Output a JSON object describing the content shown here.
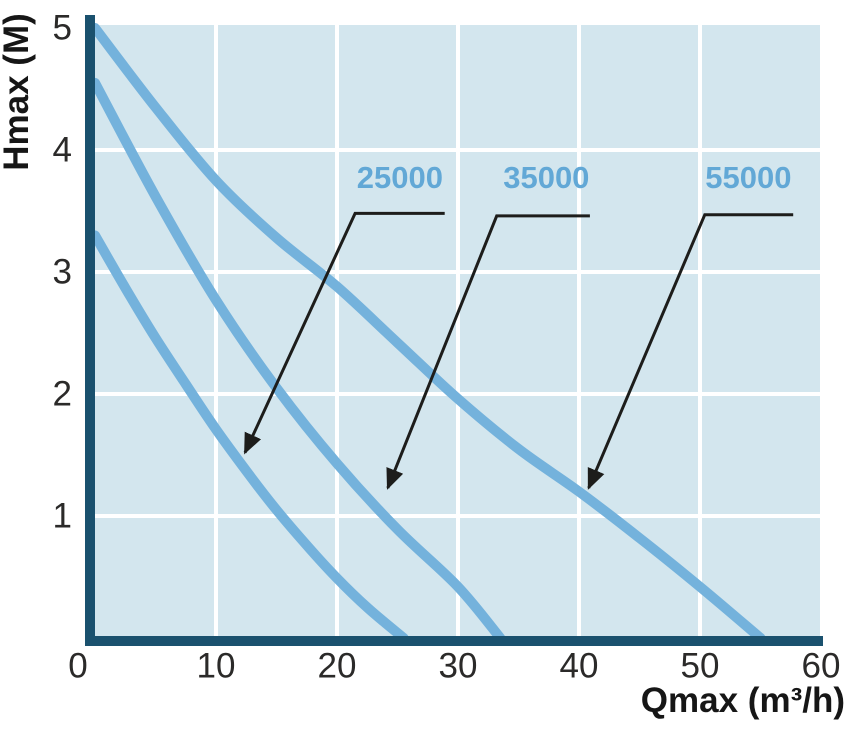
{
  "figure": {
    "colors": {
      "background": "#ffffff",
      "plot_bg": "#d3e6ee",
      "grid": "#ffffff",
      "axis": "#1a516e",
      "curve": "#74b2dc",
      "callout_text": "#62a8d6",
      "callout_line": "#1d1d1b",
      "tick_text": "#2b2a29",
      "title_text": "#161616"
    }
  },
  "chart_data": {
    "type": "line",
    "title": "",
    "xlabel": "Qmax (m³/h)",
    "ylabel": "Hmax (M)",
    "xlim": [
      0,
      60
    ],
    "ylim": [
      0,
      5
    ],
    "x_ticks": [
      0,
      10,
      20,
      30,
      40,
      50,
      60
    ],
    "y_ticks": [
      1,
      2,
      3,
      4,
      5
    ],
    "x_gridlines": [
      10,
      20,
      30,
      40,
      50
    ],
    "y_gridlines": [
      1,
      2,
      3,
      4
    ],
    "grid": true,
    "legend_position": "inline-callouts",
    "series": [
      {
        "name": "25000",
        "hmax_m": 3.3,
        "qmax_m3h": 25.5,
        "points": [
          [
            0,
            3.3
          ],
          [
            2.5,
            2.87
          ],
          [
            5,
            2.46
          ],
          [
            7.5,
            2.08
          ],
          [
            10,
            1.71
          ],
          [
            12.5,
            1.37
          ],
          [
            15,
            1.05
          ],
          [
            17.5,
            0.76
          ],
          [
            20,
            0.49
          ],
          [
            22.5,
            0.25
          ],
          [
            25.5,
            0
          ]
        ]
      },
      {
        "name": "35000",
        "hmax_m": 4.55,
        "qmax_m3h": 33.5,
        "points": [
          [
            0,
            4.55
          ],
          [
            5,
            3.62
          ],
          [
            10,
            2.77
          ],
          [
            15,
            2.05
          ],
          [
            20,
            1.43
          ],
          [
            25,
            0.89
          ],
          [
            30,
            0.42
          ],
          [
            33.5,
            0
          ]
        ]
      },
      {
        "name": "55000",
        "hmax_m": 5.0,
        "qmax_m3h": 55,
        "points": [
          [
            0,
            5.0
          ],
          [
            5,
            4.35
          ],
          [
            10,
            3.75
          ],
          [
            15,
            3.28
          ],
          [
            20,
            2.88
          ],
          [
            25,
            2.42
          ],
          [
            30,
            1.96
          ],
          [
            35,
            1.55
          ],
          [
            40,
            1.2
          ],
          [
            45,
            0.82
          ],
          [
            50,
            0.42
          ],
          [
            55,
            0
          ]
        ]
      }
    ],
    "annotations": [
      {
        "label": "25000",
        "label_pos": [
          25.2,
          3.78
        ],
        "leader": [
          [
            28.9,
            3.48
          ],
          [
            21.5,
            3.48
          ],
          [
            12.4,
            1.52
          ]
        ]
      },
      {
        "label": "35000",
        "label_pos": [
          37.3,
          3.78
        ],
        "leader": [
          [
            40.9,
            3.46
          ],
          [
            33.2,
            3.46
          ],
          [
            24.2,
            1.23
          ]
        ]
      },
      {
        "label": "55000",
        "label_pos": [
          54.0,
          3.78
        ],
        "leader": [
          [
            57.7,
            3.47
          ],
          [
            50.4,
            3.47
          ],
          [
            40.8,
            1.23
          ]
        ]
      }
    ]
  }
}
